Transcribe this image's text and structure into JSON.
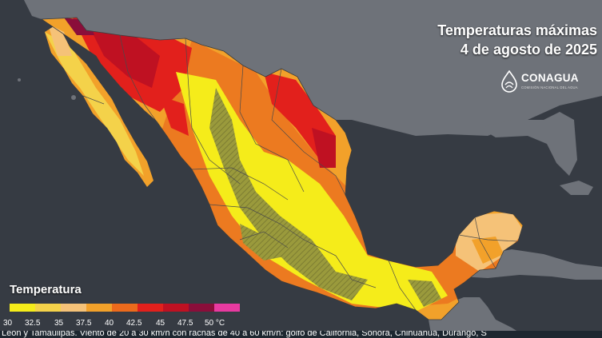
{
  "title": {
    "line1": "Temperaturas máximas",
    "line2": "4 de agosto de 2025"
  },
  "logo": {
    "name": "CONAGUA",
    "subtitle": "COMISIÓN NACIONAL DEL AGUA",
    "icon": "conagua-drop-icon"
  },
  "legend": {
    "title": "Temperatura",
    "unit": "°C",
    "ticks": [
      "30",
      "32.5",
      "35",
      "37.5",
      "40",
      "42.5",
      "45",
      "47.5",
      "50 °C"
    ],
    "colors": [
      "#f5ec1a",
      "#f4d24a",
      "#f5c278",
      "#f2a12a",
      "#ec6a1c",
      "#e2201c",
      "#bf1122",
      "#8a0e3a",
      "#e83aa0"
    ]
  },
  "ticker": {
    "text": "León y Tamaulipas. Viento de 20 a 30 km/h con rachas de 40 a 60 km/h: golfo de California, Sonora, Chihuahua, Durango, S"
  },
  "map": {
    "ocean_color": "#353a42",
    "land_color": "#6f737a"
  }
}
